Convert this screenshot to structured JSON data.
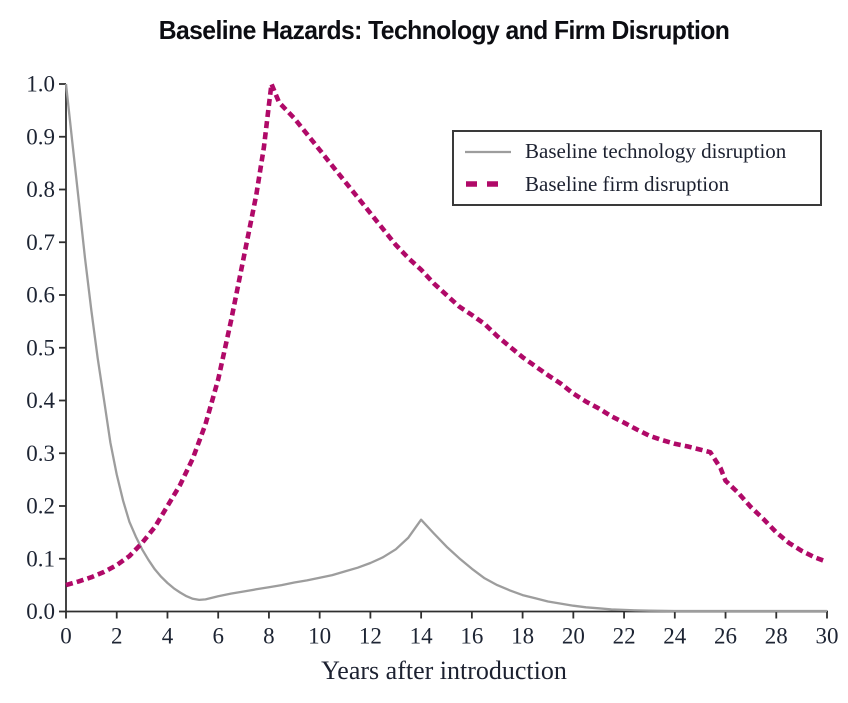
{
  "figure": {
    "title": "Baseline Hazards: Technology and Firm Disruption",
    "x_axis_label": "Years after introduction"
  },
  "legend": {
    "position": "upper-right",
    "items": [
      {
        "label": "Baseline technology disruption",
        "series": "technology",
        "line_style": "solid"
      },
      {
        "label": "Baseline firm disruption",
        "series": "firm",
        "line_style": "dashed"
      }
    ]
  },
  "colors": {
    "technology_line": "#9d9d9d",
    "firm_line": "#b00968",
    "axis": "#2f2f2f",
    "text": "#1d2433",
    "background": "#ffffff"
  },
  "chart_data": {
    "type": "line",
    "title": "Baseline Hazards: Technology and Firm Disruption",
    "xlabel": "Years after introduction",
    "ylabel": "",
    "xlim": [
      0,
      30
    ],
    "ylim": [
      0.0,
      1.0
    ],
    "x_ticks": [
      0,
      2,
      4,
      6,
      8,
      10,
      12,
      14,
      16,
      18,
      20,
      22,
      24,
      26,
      28,
      30
    ],
    "y_ticks": [
      0.0,
      0.1,
      0.2,
      0.3,
      0.4,
      0.5,
      0.6,
      0.7,
      0.8,
      0.9,
      1.0
    ],
    "grid": false,
    "legend_position": "upper-right",
    "series": [
      {
        "name": "Baseline technology disruption",
        "color": "#9d9d9d",
        "style": "solid",
        "points": [
          [
            0,
            1.0
          ],
          [
            0.25,
            0.89
          ],
          [
            0.5,
            0.78
          ],
          [
            0.75,
            0.67
          ],
          [
            1,
            0.57
          ],
          [
            1.25,
            0.48
          ],
          [
            1.5,
            0.4
          ],
          [
            1.75,
            0.32
          ],
          [
            2,
            0.26
          ],
          [
            2.25,
            0.21
          ],
          [
            2.5,
            0.17
          ],
          [
            2.75,
            0.142
          ],
          [
            3,
            0.118
          ],
          [
            3.25,
            0.098
          ],
          [
            3.5,
            0.08
          ],
          [
            3.75,
            0.066
          ],
          [
            4,
            0.054
          ],
          [
            4.25,
            0.044
          ],
          [
            4.5,
            0.036
          ],
          [
            4.75,
            0.029
          ],
          [
            5,
            0.024
          ],
          [
            5.25,
            0.022
          ],
          [
            5.5,
            0.023
          ],
          [
            6,
            0.029
          ],
          [
            6.5,
            0.034
          ],
          [
            7,
            0.038
          ],
          [
            7.5,
            0.042
          ],
          [
            8,
            0.046
          ],
          [
            8.5,
            0.05
          ],
          [
            9,
            0.055
          ],
          [
            9.5,
            0.059
          ],
          [
            10,
            0.064
          ],
          [
            10.5,
            0.069
          ],
          [
            11,
            0.076
          ],
          [
            11.5,
            0.083
          ],
          [
            12,
            0.092
          ],
          [
            12.5,
            0.103
          ],
          [
            13,
            0.118
          ],
          [
            13.5,
            0.14
          ],
          [
            14,
            0.174
          ],
          [
            14.5,
            0.148
          ],
          [
            15,
            0.123
          ],
          [
            15.5,
            0.101
          ],
          [
            16,
            0.081
          ],
          [
            16.5,
            0.063
          ],
          [
            17,
            0.05
          ],
          [
            17.5,
            0.04
          ],
          [
            18,
            0.031
          ],
          [
            18.5,
            0.025
          ],
          [
            19,
            0.019
          ],
          [
            19.5,
            0.015
          ],
          [
            20,
            0.011
          ],
          [
            20.5,
            0.008
          ],
          [
            21,
            0.006
          ],
          [
            21.5,
            0.004
          ],
          [
            22,
            0.003
          ],
          [
            22.5,
            0.002
          ],
          [
            23,
            0.0015
          ],
          [
            24,
            0.001
          ],
          [
            25,
            0.001
          ],
          [
            26,
            0.001
          ],
          [
            27,
            0.001
          ],
          [
            28,
            0.001
          ],
          [
            29,
            0.001
          ],
          [
            30,
            0.001
          ]
        ]
      },
      {
        "name": "Baseline firm disruption",
        "color": "#b00968",
        "style": "dashed",
        "points": [
          [
            0,
            0.05
          ],
          [
            0.5,
            0.057
          ],
          [
            1,
            0.065
          ],
          [
            1.5,
            0.075
          ],
          [
            2,
            0.088
          ],
          [
            2.5,
            0.105
          ],
          [
            3,
            0.13
          ],
          [
            3.5,
            0.16
          ],
          [
            4,
            0.2
          ],
          [
            4.5,
            0.24
          ],
          [
            5,
            0.29
          ],
          [
            5.5,
            0.355
          ],
          [
            6,
            0.44
          ],
          [
            6.5,
            0.55
          ],
          [
            7,
            0.67
          ],
          [
            7.5,
            0.79
          ],
          [
            7.8,
            0.88
          ],
          [
            8,
            0.96
          ],
          [
            8.1,
            1.0
          ],
          [
            8.4,
            0.965
          ],
          [
            9,
            0.935
          ],
          [
            9.5,
            0.905
          ],
          [
            10,
            0.875
          ],
          [
            10.5,
            0.845
          ],
          [
            11,
            0.815
          ],
          [
            11.5,
            0.785
          ],
          [
            12,
            0.755
          ],
          [
            12.5,
            0.725
          ],
          [
            13,
            0.695
          ],
          [
            13.5,
            0.67
          ],
          [
            14,
            0.648
          ],
          [
            14.5,
            0.622
          ],
          [
            15,
            0.6
          ],
          [
            15.5,
            0.578
          ],
          [
            16,
            0.562
          ],
          [
            16.5,
            0.545
          ],
          [
            17,
            0.522
          ],
          [
            17.5,
            0.502
          ],
          [
            18,
            0.482
          ],
          [
            18.5,
            0.465
          ],
          [
            19,
            0.448
          ],
          [
            19.5,
            0.432
          ],
          [
            20,
            0.413
          ],
          [
            20.5,
            0.398
          ],
          [
            21,
            0.385
          ],
          [
            21.5,
            0.37
          ],
          [
            22,
            0.358
          ],
          [
            22.5,
            0.345
          ],
          [
            23,
            0.333
          ],
          [
            23.5,
            0.325
          ],
          [
            24,
            0.318
          ],
          [
            24.5,
            0.313
          ],
          [
            25,
            0.307
          ],
          [
            25.4,
            0.302
          ],
          [
            25.8,
            0.272
          ],
          [
            26,
            0.248
          ],
          [
            26.5,
            0.225
          ],
          [
            27,
            0.198
          ],
          [
            27.5,
            0.175
          ],
          [
            28,
            0.15
          ],
          [
            28.5,
            0.13
          ],
          [
            29,
            0.115
          ],
          [
            29.5,
            0.103
          ],
          [
            30,
            0.094
          ]
        ]
      }
    ]
  }
}
